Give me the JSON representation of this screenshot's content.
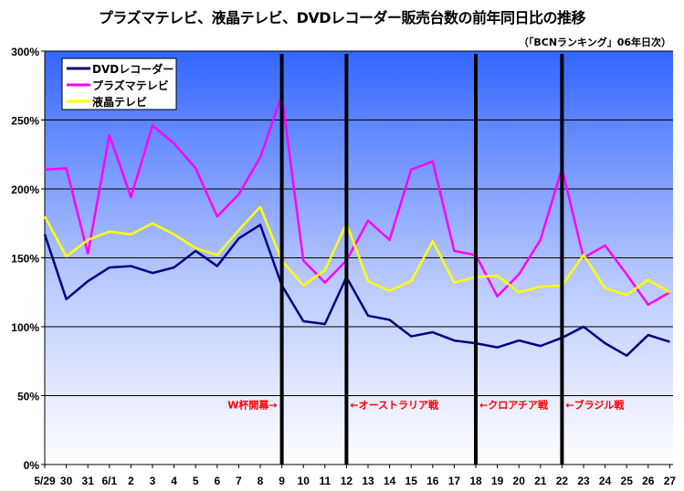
{
  "chart_data": {
    "type": "line",
    "title": "プラズマテレビ、液晶テレビ、DVDレコーダー販売台数の前年同日比の推移",
    "subtitle": "（「BCNランキング」06年日次）",
    "categories": [
      "5/29",
      "30",
      "31",
      "6/1",
      "2",
      "3",
      "4",
      "5",
      "6",
      "7",
      "8",
      "9",
      "10",
      "11",
      "12",
      "13",
      "14",
      "15",
      "16",
      "17",
      "18",
      "19",
      "20",
      "21",
      "22",
      "23",
      "24",
      "25",
      "26",
      "27"
    ],
    "yticks": [
      "0%",
      "50%",
      "100%",
      "150%",
      "200%",
      "250%",
      "300%"
    ],
    "ylim": [
      0,
      300
    ],
    "grid": true,
    "legend": "top-left",
    "series": [
      {
        "name": "DVDレコーダー",
        "color": "#000080",
        "values": [
          167,
          120,
          133,
          143,
          144,
          139,
          143,
          155,
          144,
          164,
          174,
          130,
          104,
          102,
          136,
          108,
          105,
          93,
          96,
          90,
          88,
          85,
          90,
          86,
          92,
          100,
          88,
          79,
          94,
          89
        ]
      },
      {
        "name": "プラズマテレビ",
        "color": "#ff00ff",
        "values": [
          214,
          215,
          153,
          239,
          194,
          246,
          233,
          215,
          180,
          196,
          223,
          268,
          148,
          132,
          148,
          177,
          163,
          214,
          220,
          155,
          152,
          122,
          138,
          163,
          215,
          150,
          159,
          138,
          116,
          125
        ]
      },
      {
        "name": "液晶テレビ",
        "color": "#ffff00",
        "values": [
          180,
          151,
          163,
          169,
          167,
          175,
          167,
          157,
          152,
          170,
          187,
          148,
          130,
          141,
          175,
          133,
          126,
          133,
          162,
          132,
          136,
          137,
          125,
          129,
          130,
          152,
          128,
          123,
          134,
          125
        ]
      }
    ],
    "markers": [
      {
        "category": "9",
        "label": "W杯開幕→",
        "side": "left"
      },
      {
        "category": "12",
        "label": "←オーストラリア戦",
        "side": "right"
      },
      {
        "category": "18",
        "label": "←クロアチア戦",
        "side": "right"
      },
      {
        "category": "22",
        "label": "←ブラジル戦",
        "side": "right"
      }
    ]
  }
}
